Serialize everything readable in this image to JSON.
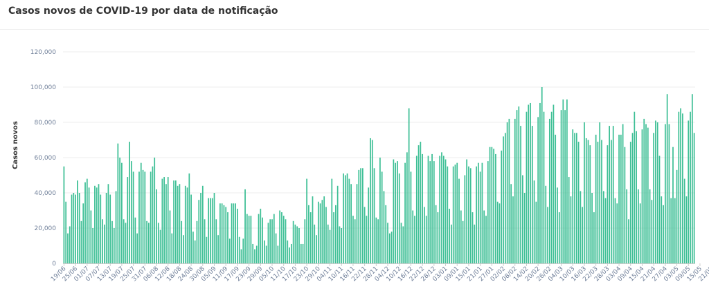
{
  "header": {
    "title": "Casos novos de COVID-19 por data de notificação"
  },
  "chart_data": {
    "type": "bar",
    "title": "Casos novos de COVID-19 por data de notificação",
    "xlabel": "",
    "ylabel": "Casos novos",
    "ylim": [
      0,
      120000
    ],
    "yticks": [
      "0",
      "20,000",
      "40,000",
      "60,000",
      "80,000",
      "100,000",
      "120,000"
    ],
    "bar_color": "#3dbf95",
    "grid": "horizontal",
    "x_start": "2020-06-19",
    "x_tick_labels": [
      "19/06",
      "25/06",
      "01/07",
      "07/07",
      "13/07",
      "19/07",
      "25/07",
      "31/07",
      "06/08",
      "12/08",
      "18/08",
      "24/08",
      "30/08",
      "05/09",
      "11/09",
      "17/09",
      "23/09",
      "29/09",
      "05/10",
      "11/10",
      "17/10",
      "23/10",
      "29/10",
      "04/11",
      "10/11",
      "16/11",
      "22/11",
      "28/11",
      "04/12",
      "10/12",
      "16/12",
      "22/12",
      "28/12",
      "03/01",
      "09/01",
      "15/01",
      "21/01",
      "27/01",
      "02/02",
      "08/02",
      "14/02",
      "20/02",
      "26/02",
      "04/03",
      "10/03",
      "16/03",
      "22/03",
      "28/03",
      "03/04",
      "09/04",
      "15/04",
      "21/04",
      "27/04",
      "03/05",
      "09/05",
      "15/05",
      "21/05",
      "27/05",
      "02/06",
      "08/06",
      "14/06"
    ],
    "values": [
      55000,
      35000,
      17000,
      21000,
      39000,
      40000,
      39000,
      47000,
      40000,
      24000,
      34000,
      46000,
      48000,
      43000,
      30000,
      20000,
      44000,
      43000,
      45000,
      39000,
      25000,
      22000,
      40000,
      45000,
      39000,
      24000,
      20000,
      41000,
      68000,
      60000,
      57000,
      25000,
      23000,
      49000,
      69000,
      58000,
      52000,
      26000,
      17000,
      52000,
      57000,
      53000,
      52000,
      24000,
      23000,
      52000,
      55000,
      60000,
      42000,
      23000,
      19000,
      48000,
      49000,
      45000,
      49000,
      30000,
      17000,
      47000,
      47000,
      44000,
      45000,
      24000,
      16000,
      44000,
      43000,
      51000,
      39000,
      18000,
      13000,
      24000,
      36000,
      40000,
      44000,
      25000,
      15000,
      37000,
      37000,
      37000,
      40000,
      25000,
      16000,
      34000,
      34000,
      33000,
      32000,
      29000,
      14000,
      34000,
      34000,
      34000,
      31000,
      15000,
      8000,
      14000,
      42000,
      28000,
      27000,
      27000,
      11000,
      8000,
      10000,
      28000,
      31000,
      26000,
      13000,
      10000,
      23000,
      25000,
      25000,
      28000,
      17000,
      10000,
      30000,
      29000,
      27000,
      25000,
      13000,
      9000,
      11000,
      24000,
      22000,
      21000,
      20000,
      11000,
      11000,
      25000,
      48000,
      33000,
      29000,
      38000,
      22000,
      16000,
      35000,
      34000,
      36000,
      38000,
      32000,
      22000,
      19000,
      48000,
      29000,
      33000,
      44000,
      21000,
      20000,
      51000,
      50000,
      51000,
      48000,
      45000,
      27000,
      25000,
      45000,
      53000,
      54000,
      54000,
      32000,
      27000,
      43000,
      71000,
      70000,
      54000,
      26000,
      25000,
      60000,
      52000,
      41000,
      33000,
      23000,
      17000,
      18000,
      59000,
      57000,
      58000,
      51000,
      23000,
      21000,
      57000,
      63000,
      88000,
      52000,
      30000,
      27000,
      61000,
      67000,
      69000,
      62000,
      32000,
      27000,
      61000,
      58000,
      62000,
      58000,
      33000,
      29000,
      61000,
      63000,
      61000,
      59000,
      55000,
      31000,
      22000,
      55000,
      56000,
      57000,
      48000,
      30000,
      24000,
      50000,
      59000,
      55000,
      54000,
      29000,
      22000,
      55000,
      57000,
      52000,
      57000,
      30000,
      27000,
      58000,
      66000,
      66000,
      65000,
      62000,
      35000,
      34000,
      64000,
      72000,
      74000,
      80000,
      82000,
      45000,
      38000,
      82000,
      87000,
      89000,
      78000,
      50000,
      40000,
      86000,
      90000,
      91000,
      78000,
      47000,
      35000,
      83000,
      91000,
      100000,
      86000,
      44000,
      32000,
      82000,
      86000,
      90000,
      73000,
      43000,
      29000,
      87000,
      93000,
      87000,
      93000,
      49000,
      38000,
      76000,
      74000,
      74000,
      69000,
      41000,
      32000,
      80000,
      71000,
      70000,
      67000,
      40000,
      29000,
      73000,
      69000,
      80000,
      70000,
      41000,
      37000,
      67000,
      78000,
      70000,
      78000,
      37000,
      34000,
      73000,
      73000,
      79000,
      66000,
      42000,
      25000,
      69000,
      74000,
      86000,
      75000,
      42000,
      34000,
      76000,
      82000,
      79000,
      77000,
      42000,
      36000,
      74000,
      81000,
      80000,
      61000,
      38000,
      33000,
      79000,
      96000,
      79000,
      37000,
      66000,
      37000,
      53000,
      86000,
      88000,
      85000,
      48000,
      38000,
      81000,
      86000,
      96000,
      74000
    ],
    "series": [
      {
        "name": "Casos novos"
      }
    ]
  }
}
